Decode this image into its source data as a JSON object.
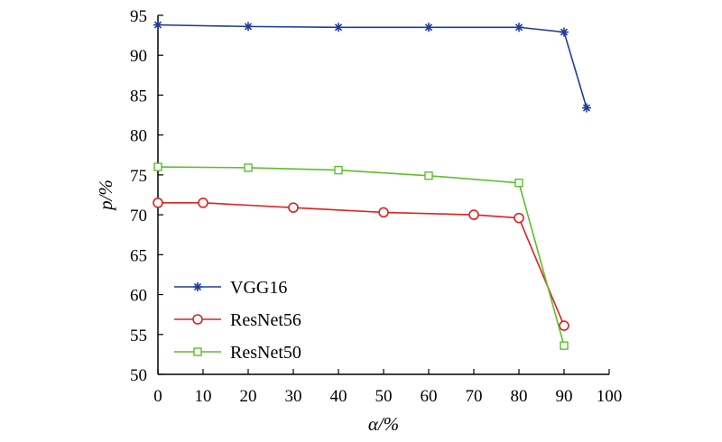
{
  "chart_data": {
    "type": "line",
    "title": "",
    "xlabel": "α/%",
    "ylabel": "p/%",
    "xlim": [
      0,
      100
    ],
    "ylim": [
      50,
      95
    ],
    "xticks": [
      0,
      10,
      20,
      30,
      40,
      50,
      60,
      70,
      80,
      90,
      100
    ],
    "yticks": [
      50,
      55,
      60,
      65,
      70,
      75,
      80,
      85,
      90,
      95
    ],
    "legend_position": "lower-left",
    "grid": false,
    "series": [
      {
        "name": "VGG16",
        "color": "#1f3c9c",
        "marker": "asterisk",
        "x": [
          0,
          20,
          40,
          60,
          80,
          90,
          95
        ],
        "y": [
          93.8,
          93.6,
          93.5,
          93.5,
          93.5,
          92.9,
          83.4
        ]
      },
      {
        "name": "ResNet56",
        "color": "#e02020",
        "marker": "circle",
        "x": [
          0,
          10,
          30,
          50,
          70,
          80,
          90
        ],
        "y": [
          71.5,
          71.5,
          70.9,
          70.3,
          70.0,
          69.6,
          56.1
        ]
      },
      {
        "name": "ResNet50",
        "color": "#5cbf2a",
        "marker": "square",
        "x": [
          0,
          20,
          40,
          60,
          80,
          90
        ],
        "y": [
          76.0,
          75.9,
          75.6,
          74.9,
          74.0,
          53.6
        ]
      }
    ]
  }
}
